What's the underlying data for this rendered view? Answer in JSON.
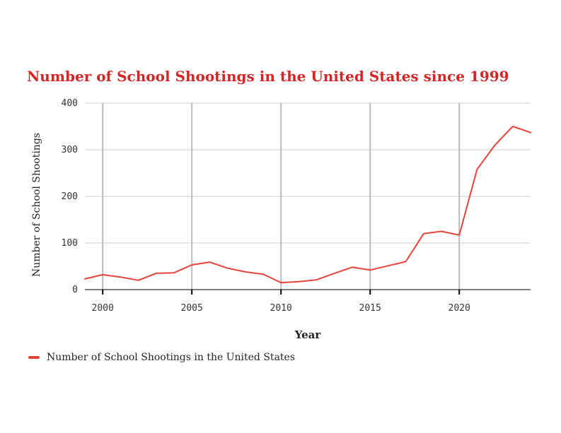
{
  "chart_data": {
    "type": "line",
    "title": "Number of School Shootings in the United States since 1999",
    "xlabel": "Year",
    "ylabel": "Number of School Shootings",
    "xlim": [
      1999,
      2024
    ],
    "ylim": [
      0,
      400
    ],
    "x_ticks": [
      2000,
      2005,
      2010,
      2015,
      2020
    ],
    "y_ticks": [
      0,
      100,
      200,
      300,
      400
    ],
    "grid": true,
    "legend_position": "bottom-left",
    "series": [
      {
        "name": "Number of School Shootings in the United States",
        "color": "#e8433a",
        "x": [
          1999,
          2000,
          2001,
          2002,
          2003,
          2004,
          2005,
          2006,
          2007,
          2008,
          2009,
          2010,
          2011,
          2012,
          2013,
          2014,
          2015,
          2016,
          2017,
          2018,
          2019,
          2020,
          2021,
          2022,
          2023,
          2024
        ],
        "values": [
          23,
          32,
          27,
          20,
          35,
          36,
          53,
          59,
          46,
          38,
          33,
          15,
          17,
          21,
          35,
          48,
          42,
          51,
          60,
          120,
          125,
          117,
          258,
          310,
          350,
          337
        ]
      }
    ]
  },
  "legend": {
    "label": "Number of School Shootings in the United States"
  }
}
